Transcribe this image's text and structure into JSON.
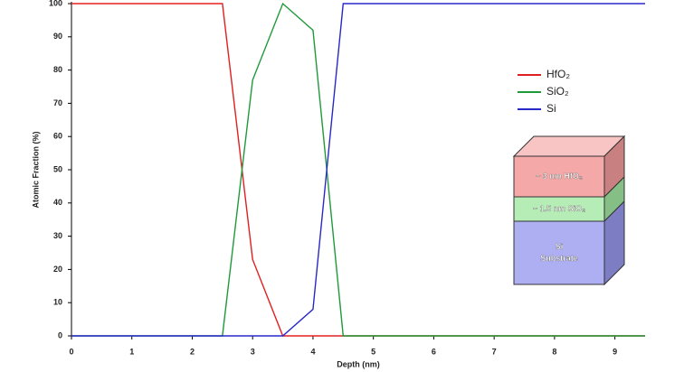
{
  "chart_data": {
    "type": "line",
    "x_label": "Depth (nm)",
    "y_label": "Atomic Fraction (%)",
    "x": [
      0,
      2.5,
      3,
      3.5,
      4,
      4.5,
      9.5
    ],
    "series": [
      {
        "name": "HfO₂",
        "color": "#e02020",
        "values": [
          100,
          100,
          23,
          0,
          0,
          0,
          0
        ]
      },
      {
        "name": "SiO₂",
        "color": "#1f9a3a",
        "values": [
          0,
          0,
          77,
          100,
          92,
          0,
          0
        ]
      },
      {
        "name": "Si",
        "color": "#2828c8",
        "values": [
          0,
          0,
          0,
          0,
          8,
          100,
          100
        ]
      }
    ],
    "xlim": [
      0,
      9.5
    ],
    "xticks": [
      0,
      1,
      2,
      3,
      4,
      5,
      6,
      7,
      8,
      9
    ],
    "ylim": [
      0,
      100
    ],
    "yticks": [
      0,
      10,
      20,
      30,
      40,
      50,
      60,
      70,
      80,
      90,
      100
    ],
    "grid": false,
    "inset": {
      "layers": [
        {
          "lines": [
            "~ 3 nm HfO₂"
          ]
        },
        {
          "lines": [
            "~ 1.5 nm SiO₂"
          ]
        },
        {
          "lines": [
            "Si",
            "Substrate"
          ]
        }
      ]
    }
  }
}
